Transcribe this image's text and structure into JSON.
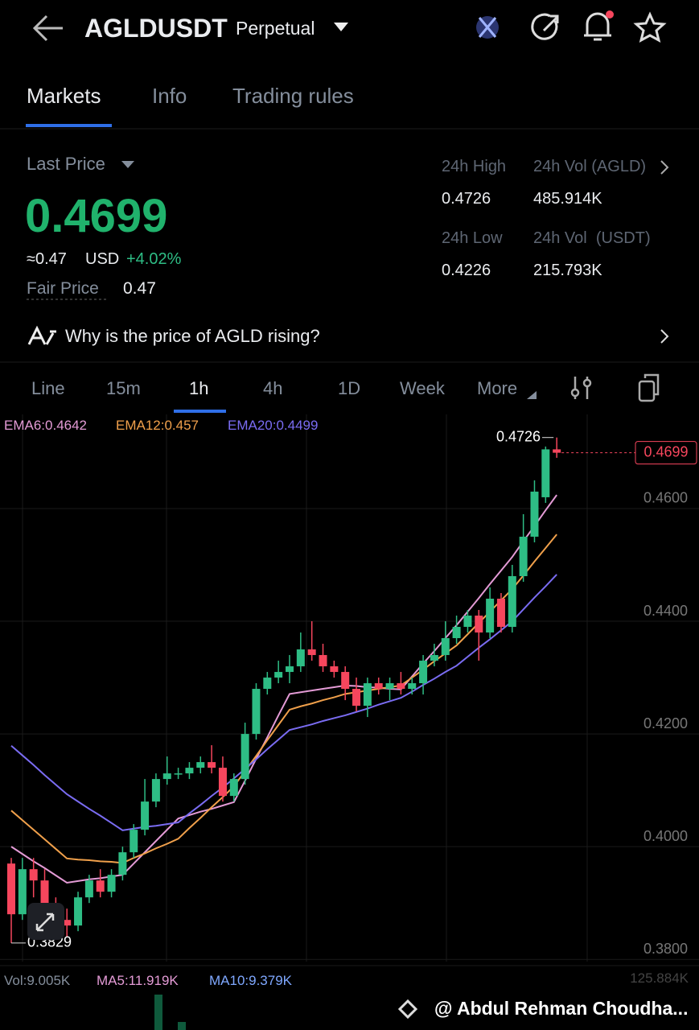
{
  "header": {
    "symbol": "AGLDUSDT",
    "contract": "Perpetual"
  },
  "tabs": [
    "Markets",
    "Info",
    "Trading rules"
  ],
  "price": {
    "label": "Last Price",
    "last": "0.4699",
    "usd": "≈0.47",
    "usd_unit": "USD",
    "change": "+4.02%",
    "fair_label": "Fair Price",
    "fair": "0.47"
  },
  "stats": [
    {
      "label": "24h High",
      "value": "0.4726"
    },
    {
      "label": "24h Vol (AGLD)",
      "value": "485.914K"
    },
    {
      "label": "24h Low",
      "value": "0.4226"
    },
    {
      "label": "24h Vol  (USDT)",
      "value": "215.793K"
    }
  ],
  "insight": "Why is the price of AGLD rising?",
  "intervals": [
    "Line",
    "15m",
    "1h",
    "4h",
    "1D",
    "Week",
    "More"
  ],
  "chart_data": {
    "type": "candlestick",
    "up_color": "#2ebd85",
    "down_color": "#f6465d",
    "categories": [
      null,
      null,
      null,
      null,
      null,
      null,
      null,
      null,
      null,
      null,
      null,
      null,
      null,
      null,
      null,
      null,
      null,
      null,
      null,
      null,
      null,
      null,
      null,
      null,
      null,
      null,
      null,
      null,
      null,
      null,
      null,
      null,
      null,
      null,
      null,
      null,
      null,
      null,
      null,
      null,
      null,
      null,
      null,
      null,
      null,
      null,
      null,
      null,
      null,
      null
    ],
    "open": [
      0.397,
      0.388,
      0.396,
      0.394,
      0.389,
      0.387,
      0.386,
      0.391,
      0.394,
      0.392,
      0.395,
      0.399,
      0.403,
      0.408,
      0.412,
      0.413,
      0.413,
      0.414,
      0.415,
      0.414,
      0.409,
      0.412,
      0.42,
      0.428,
      0.43,
      0.431,
      0.432,
      0.435,
      0.434,
      0.432,
      0.431,
      0.428,
      0.425,
      0.429,
      0.428,
      0.429,
      0.428,
      0.429,
      0.433,
      0.434,
      0.437,
      0.439,
      0.441,
      0.438,
      0.444,
      0.439,
      0.448,
      0.455,
      0.462,
      0.4705
    ],
    "high": [
      0.398,
      0.398,
      0.398,
      0.396,
      0.391,
      0.389,
      0.392,
      0.395,
      0.396,
      0.396,
      0.4,
      0.404,
      0.412,
      0.413,
      0.416,
      0.414,
      0.415,
      0.416,
      0.418,
      0.416,
      0.413,
      0.422,
      0.429,
      0.431,
      0.433,
      0.434,
      0.438,
      0.44,
      0.436,
      0.433,
      0.432,
      0.43,
      0.43,
      0.43,
      0.43,
      0.431,
      0.43,
      0.434,
      0.436,
      0.44,
      0.441,
      0.442,
      0.442,
      0.446,
      0.445,
      0.45,
      0.459,
      0.465,
      0.471,
      0.4726
    ],
    "low": [
      0.3829,
      0.387,
      0.391,
      0.388,
      0.384,
      0.384,
      0.385,
      0.39,
      0.391,
      0.391,
      0.394,
      0.398,
      0.402,
      0.407,
      0.411,
      0.412,
      0.412,
      0.413,
      0.413,
      0.408,
      0.408,
      0.411,
      0.419,
      0.427,
      0.429,
      0.429,
      0.431,
      0.433,
      0.431,
      0.43,
      0.426,
      0.424,
      0.423,
      0.427,
      0.426,
      0.427,
      0.427,
      0.427,
      0.432,
      0.433,
      0.436,
      0.438,
      0.433,
      0.437,
      0.438,
      0.438,
      0.447,
      0.454,
      0.461,
      0.469
    ],
    "close": [
      0.388,
      0.396,
      0.394,
      0.389,
      0.387,
      0.386,
      0.391,
      0.394,
      0.392,
      0.395,
      0.399,
      0.403,
      0.408,
      0.412,
      0.413,
      0.413,
      0.414,
      0.415,
      0.414,
      0.409,
      0.412,
      0.42,
      0.428,
      0.43,
      0.431,
      0.432,
      0.435,
      0.434,
      0.432,
      0.431,
      0.428,
      0.425,
      0.429,
      0.428,
      0.429,
      0.428,
      0.429,
      0.433,
      0.434,
      0.437,
      0.439,
      0.441,
      0.438,
      0.444,
      0.439,
      0.448,
      0.455,
      0.463,
      0.4705,
      0.4699
    ],
    "series": [
      {
        "name": "EMA6:0.4642",
        "color": "#e49bd6",
        "values": [
          0.4,
          0.3987,
          0.3974,
          0.3962,
          0.3949,
          0.3936,
          0.3939,
          0.3942,
          0.3944,
          0.3947,
          0.395,
          0.397,
          0.399,
          0.401,
          0.403,
          0.405,
          0.4056,
          0.4062,
          0.4067,
          0.4073,
          0.4079,
          0.4117,
          0.4156,
          0.4194,
          0.4233,
          0.4271,
          0.4274,
          0.4277,
          0.428,
          0.4283,
          0.4286,
          0.4285,
          0.4283,
          0.4282,
          0.428,
          0.4279,
          0.4302,
          0.4325,
          0.4347,
          0.437,
          0.4393,
          0.4417,
          0.4441,
          0.4466,
          0.449,
          0.4514,
          0.4542,
          0.4569,
          0.4597,
          0.4624
        ]
      },
      {
        "name": "EMA12:0.457",
        "color": "#f0a04b",
        "values": [
          0.4064,
          0.4047,
          0.403,
          0.4013,
          0.3996,
          0.3979,
          0.3977,
          0.3976,
          0.3974,
          0.3973,
          0.3971,
          0.398,
          0.3988,
          0.3997,
          0.4005,
          0.4014,
          0.4033,
          0.4051,
          0.407,
          0.4088,
          0.4107,
          0.4134,
          0.4161,
          0.4189,
          0.4216,
          0.4243,
          0.4249,
          0.4254,
          0.426,
          0.4265,
          0.4271,
          0.4274,
          0.4277,
          0.428,
          0.4283,
          0.4286,
          0.43,
          0.4314,
          0.4329,
          0.4343,
          0.4357,
          0.4377,
          0.4397,
          0.4417,
          0.4437,
          0.4457,
          0.4481,
          0.4506,
          0.453,
          0.4554
        ]
      },
      {
        "name": "EMA20:0.4499",
        "color": "#7a6cf2",
        "values": [
          0.4179,
          0.4162,
          0.4145,
          0.4127,
          0.411,
          0.4093,
          0.408,
          0.4067,
          0.4055,
          0.4042,
          0.4029,
          0.4032,
          0.4035,
          0.4037,
          0.404,
          0.4043,
          0.4059,
          0.4074,
          0.409,
          0.4105,
          0.4121,
          0.4138,
          0.4155,
          0.4173,
          0.419,
          0.4207,
          0.4212,
          0.4217,
          0.4223,
          0.4228,
          0.4233,
          0.4239,
          0.4245,
          0.4252,
          0.4258,
          0.4264,
          0.4275,
          0.4287,
          0.4298,
          0.431,
          0.4321,
          0.4337,
          0.4353,
          0.4368,
          0.4384,
          0.44,
          0.4421,
          0.4442,
          0.4462,
          0.4483
        ]
      }
    ],
    "ylim": [
      0.3796,
      0.4767
    ],
    "yticks": [
      {
        "value": 0.46,
        "label": "0.4600"
      },
      {
        "value": 0.44,
        "label": "0.4400"
      },
      {
        "value": 0.42,
        "label": "0.4200"
      },
      {
        "value": 0.4,
        "label": "0.4000"
      },
      {
        "value": 0.38,
        "label": "0.3800"
      }
    ],
    "grid": true,
    "high_marker": {
      "value": 0.4726,
      "label": "0.4726"
    },
    "low_marker": {
      "value": 0.3829,
      "label": "0.3829"
    },
    "last_marker": {
      "value": 0.4699,
      "label": "0.4699"
    }
  },
  "volume": {
    "vol": "Vol:9.005K",
    "ma5": "MA5:11.919K",
    "ma10": "MA10:9.379K",
    "max": "125.884K"
  },
  "watermark": "@ Abdul Rehman Choudha..."
}
